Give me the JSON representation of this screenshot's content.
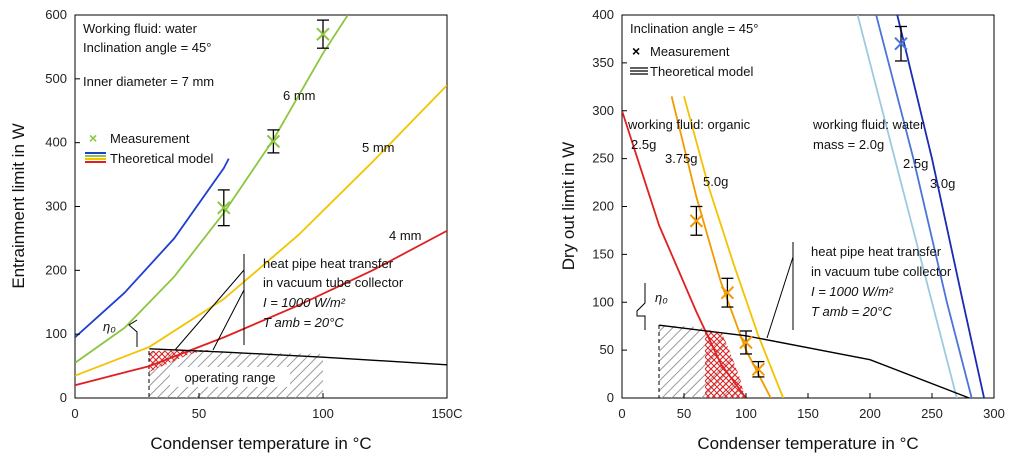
{
  "chart_data": [
    {
      "type": "line",
      "xlabel": "Condenser temperature in °C",
      "ylabel": "Entrainment limit in W",
      "xlim": [
        0,
        150
      ],
      "ylim": [
        0,
        600
      ],
      "xticks": [
        "0",
        "50",
        "100",
        "150C"
      ],
      "yticks": [
        "0",
        "100",
        "200",
        "300",
        "400",
        "500",
        "600"
      ],
      "grid": false,
      "annotations": {
        "fluid": "Working fluid: water",
        "angle": "Inclination angle = 45°",
        "inner_diameter": "Inner diameter = 7 mm",
        "d6": "6 mm",
        "d5": "5 mm",
        "d4": "4 mm",
        "eta": "η₀",
        "hp_line1": "heat pipe heat transfer",
        "hp_line2": "in vacuum tube collector",
        "irradiance": "I = 1000 W/m²",
        "tamb": "T amb = 20°C",
        "operating_range": "operating range"
      },
      "legend": {
        "measurement": "Measurement",
        "model": "Theoretical model"
      },
      "series": [
        {
          "name": "7 mm",
          "color": "#1f3fd0",
          "x": [
            0,
            20,
            40,
            60,
            62
          ],
          "y": [
            95,
            165,
            250,
            360,
            375
          ]
        },
        {
          "name": "6 mm",
          "color": "#8cc63f",
          "x": [
            0,
            20,
            40,
            60,
            80,
            100,
            110
          ],
          "y": [
            55,
            110,
            190,
            290,
            405,
            540,
            600
          ]
        },
        {
          "name": "5 mm",
          "color": "#f2c400",
          "x": [
            0,
            30,
            60,
            90,
            120,
            150
          ],
          "y": [
            35,
            80,
            155,
            255,
            370,
            490
          ]
        },
        {
          "name": "4 mm",
          "color": "#e02020",
          "x": [
            0,
            30,
            60,
            90,
            120,
            150
          ],
          "y": [
            20,
            50,
            95,
            145,
            200,
            262
          ]
        },
        {
          "name": "heat transfer",
          "color": "#000000",
          "x": [
            30,
            60,
            100,
            150
          ],
          "y": [
            77,
            72,
            64,
            52
          ]
        }
      ],
      "measurements": [
        {
          "x": 60,
          "y": 298,
          "err": 28
        },
        {
          "x": 80,
          "y": 402,
          "err": 18
        },
        {
          "x": 100,
          "y": 570,
          "err": 22
        }
      ]
    },
    {
      "type": "line",
      "xlabel": "Condenser temperature in °C",
      "ylabel": "Dry out limit in W",
      "xlim": [
        0,
        300
      ],
      "ylim": [
        0,
        400
      ],
      "xticks": [
        "0",
        "50",
        "100",
        "150",
        "200",
        "250",
        "300"
      ],
      "yticks": [
        "0",
        "50",
        "100",
        "150",
        "200",
        "250",
        "300",
        "350",
        "400"
      ],
      "grid": false,
      "annotations": {
        "angle": "Inclination angle = 45°",
        "organic": "working fluid: organic",
        "water": "working fluid: water",
        "m_w1": "mass = 2.0g",
        "m_w2": "2.5g",
        "m_w3": "3.0g",
        "m_o1": "2.5g",
        "m_o2": "3.75g",
        "m_o3": "5.0g",
        "eta": "η₀",
        "hp_line1": "heat pipe heat transfer",
        "hp_line2": "in vacuum tube collector",
        "irradiance": "I = 1000 W/m²",
        "tamb": "T amb = 20°C"
      },
      "legend": {
        "measurement": "Measurement",
        "model": "Theoretical model"
      },
      "series": [
        {
          "name": "organic 2.5g",
          "color": "#e02020",
          "x": [
            0,
            30,
            60,
            80,
            100
          ],
          "y": [
            300,
            180,
            90,
            35,
            0
          ]
        },
        {
          "name": "organic 3.75g",
          "color": "#f29a00",
          "x": [
            40,
            60,
            80,
            100,
            120
          ],
          "y": [
            315,
            210,
            120,
            50,
            0
          ]
        },
        {
          "name": "organic 5.0g",
          "color": "#f2c400",
          "x": [
            50,
            70,
            90,
            110,
            130
          ],
          "y": [
            315,
            220,
            140,
            65,
            0
          ]
        },
        {
          "name": "water 2.0g",
          "color": "#9ecae1",
          "x": [
            190,
            220,
            250,
            270
          ],
          "y": [
            400,
            250,
            100,
            0
          ]
        },
        {
          "name": "water 2.5g",
          "color": "#4a74d8",
          "x": [
            205,
            235,
            262,
            282
          ],
          "y": [
            400,
            250,
            100,
            0
          ]
        },
        {
          "name": "water 3.0g",
          "color": "#1a2bb5",
          "x": [
            222,
            250,
            275,
            292
          ],
          "y": [
            400,
            250,
            100,
            0
          ]
        },
        {
          "name": "heat transfer",
          "color": "#000000",
          "x": [
            30,
            100,
            200,
            280
          ],
          "y": [
            76,
            65,
            40,
            0
          ]
        }
      ],
      "measurements": [
        {
          "x": 60,
          "y": 185,
          "err": 15,
          "color": "#f29a00"
        },
        {
          "x": 85,
          "y": 110,
          "err": 15,
          "color": "#f29a00"
        },
        {
          "x": 100,
          "y": 58,
          "err": 12,
          "color": "#f29a00"
        },
        {
          "x": 110,
          "y": 30,
          "err": 8,
          "color": "#f29a00"
        },
        {
          "x": 225,
          "y": 370,
          "err": 18,
          "color": "#4a74d8"
        }
      ]
    }
  ]
}
